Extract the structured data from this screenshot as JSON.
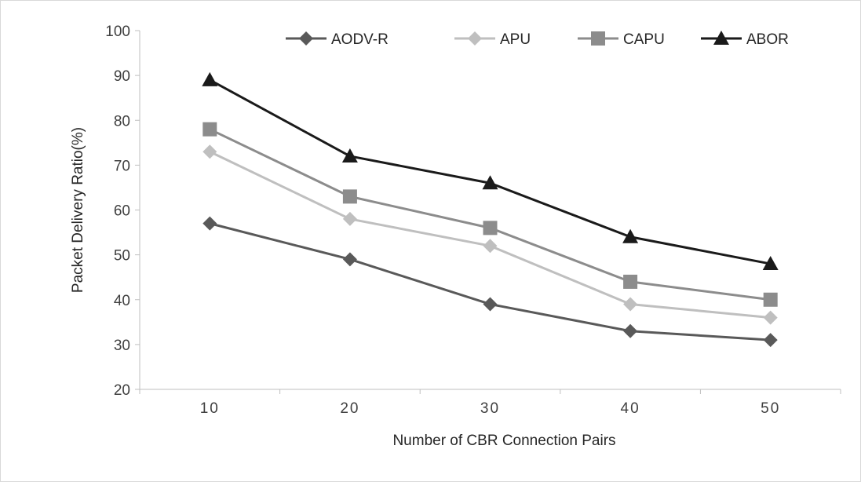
{
  "chart_data": {
    "type": "line",
    "title": "",
    "xlabel": "Number of CBR Connection Pairs",
    "ylabel": "Packet Delivery Ratio(%)",
    "categories": [
      "10",
      "20",
      "30",
      "40",
      "50"
    ],
    "ylim": [
      20,
      100
    ],
    "yticks": [
      "20",
      "30",
      "40",
      "50",
      "60",
      "70",
      "80",
      "90",
      "100"
    ],
    "grid": false,
    "legend_position": "top",
    "series": [
      {
        "name": "AODV-R",
        "values": [
          57,
          49,
          39,
          33,
          31
        ],
        "color": "#595959",
        "marker": "diamond"
      },
      {
        "name": "APU",
        "values": [
          73,
          58,
          52,
          39,
          36
        ],
        "color": "#bfbfbf",
        "marker": "diamond"
      },
      {
        "name": "CAPU",
        "values": [
          78,
          63,
          56,
          44,
          40
        ],
        "color": "#8c8c8c",
        "marker": "square"
      },
      {
        "name": "ABOR",
        "values": [
          89,
          72,
          66,
          54,
          48
        ],
        "color": "#1a1a1a",
        "marker": "triangle"
      }
    ]
  }
}
